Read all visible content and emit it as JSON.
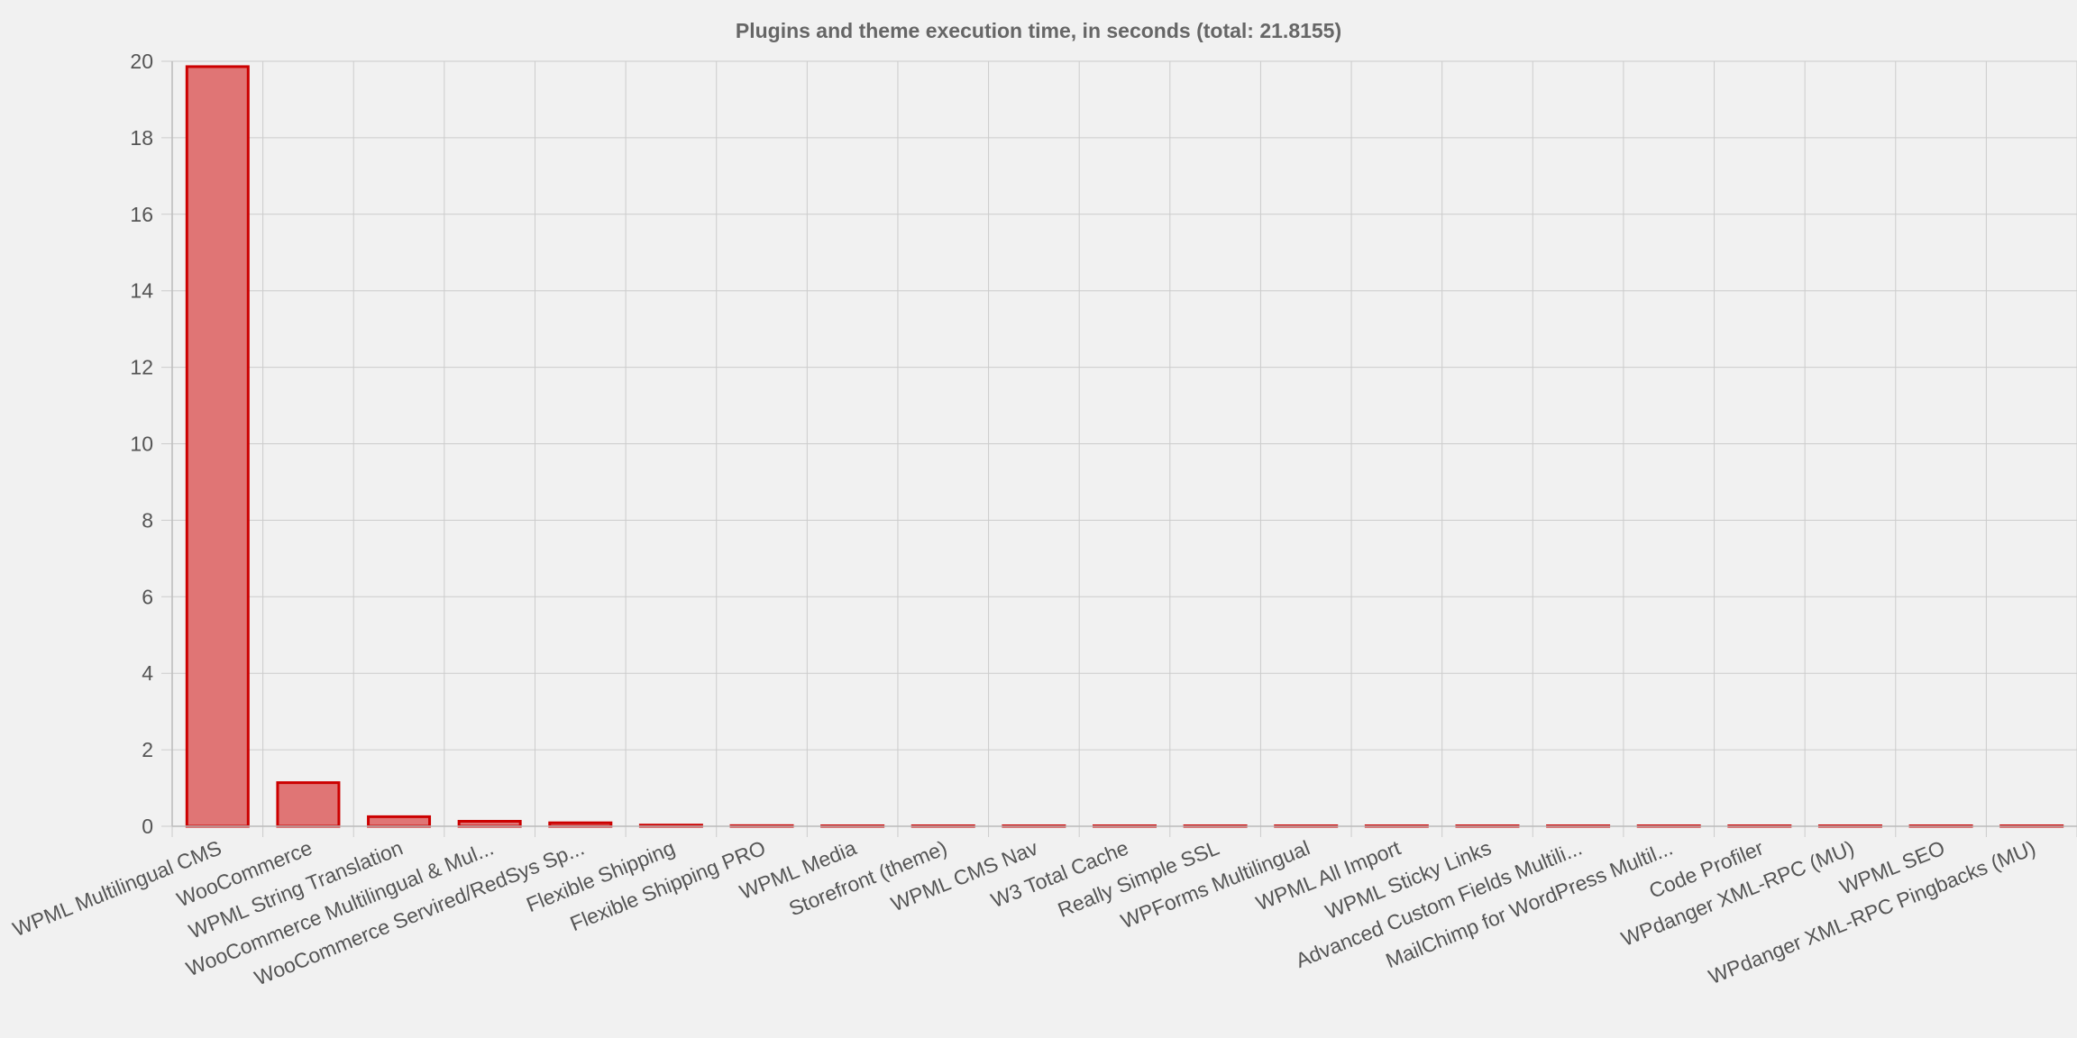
{
  "chart_data": {
    "type": "bar",
    "title": "Plugins and theme execution time, in seconds (total: 21.8155)",
    "xlabel": "",
    "ylabel": "",
    "ylim": [
      0,
      20
    ],
    "yticks": [
      0,
      2,
      4,
      6,
      8,
      10,
      12,
      14,
      16,
      18,
      20
    ],
    "grid": true,
    "legend": "none",
    "colors": {
      "bar_fill": "#e07575",
      "bar_border": "#cc0000",
      "background": "#f1f1f1",
      "grid": "#cccccc",
      "text": "#555555"
    },
    "categories": [
      "WPML Multilingual CMS",
      "WooCommerce",
      "WPML String Translation",
      "WooCommerce Multilingual & Mul...",
      "WooCommerce Servired/RedSys Sp...",
      "Flexible Shipping",
      "Flexible Shipping PRO",
      "WPML Media",
      "Storefront (theme)",
      "WPML CMS Nav",
      "W3 Total Cache",
      "Really Simple SSL",
      "WPForms Multilingual",
      "WPML All Import",
      "WPML Sticky Links",
      "Advanced Custom Fields Multili...",
      "MailChimp for WordPress Multil...",
      "Code Profiler",
      "WPdanger XML-RPC (MU)",
      "WPML SEO",
      "WPdanger XML-RPC Pingbacks (MU)"
    ],
    "values": [
      19.86,
      1.14,
      0.25,
      0.13,
      0.09,
      0.03,
      0.015,
      0.01,
      0.01,
      0.01,
      0.01,
      0.01,
      0.01,
      0.01,
      0.01,
      0.01,
      0.01,
      0.005,
      0.005,
      0.005,
      0.005
    ]
  }
}
